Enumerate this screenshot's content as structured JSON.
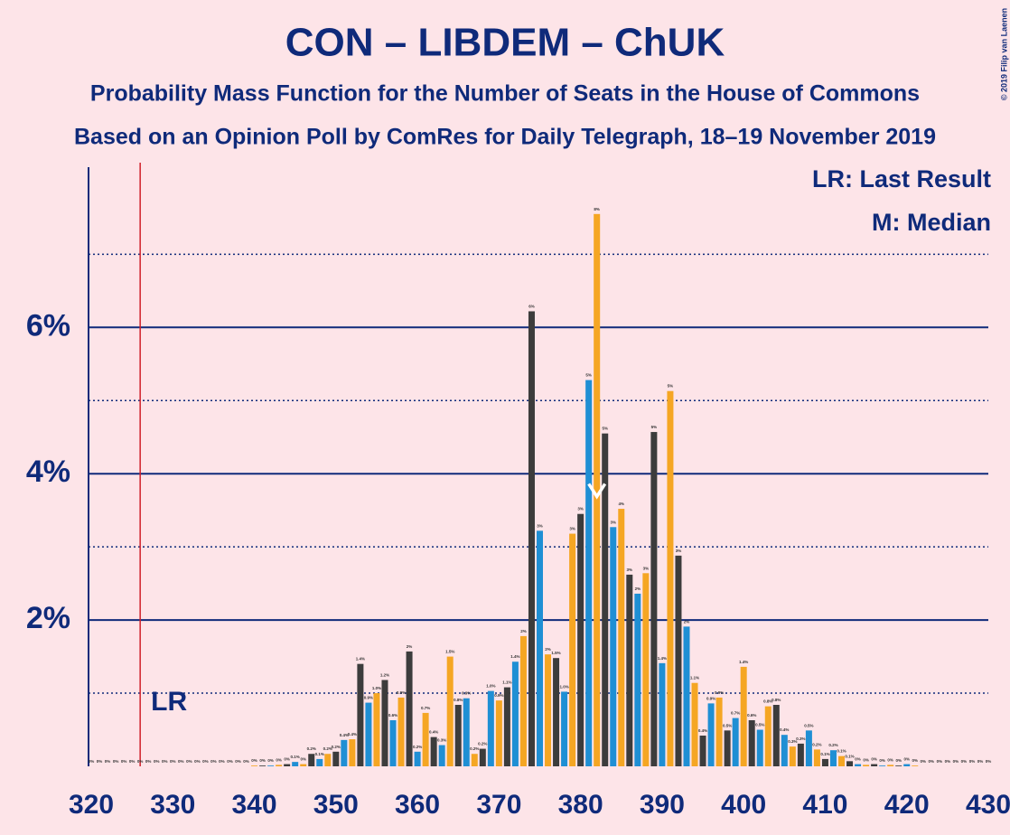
{
  "chart_data": {
    "type": "bar",
    "title": "CON – LIBDEM – ChUK",
    "subtitle": "Probability Mass Function for the Number of Seats in the House of Commons",
    "subtitle2": "Based on an Opinion Poll by ComRes for Daily Telegraph, 18–19 November 2019",
    "legend_lr": "LR: Last Result",
    "legend_median": "M: Median",
    "last_result": 326,
    "last_result_label": "LR",
    "median": 382,
    "copyright": "© 2019 Filip van Laenen",
    "colors": [
      "#3c3c3c",
      "#1f8fd4",
      "#f5a623"
    ],
    "x": [
      320,
      321,
      322,
      323,
      324,
      325,
      326,
      327,
      328,
      329,
      330,
      331,
      332,
      333,
      334,
      335,
      336,
      337,
      338,
      339,
      340,
      341,
      342,
      343,
      344,
      345,
      346,
      347,
      348,
      349,
      350,
      351,
      352,
      353,
      354,
      355,
      356,
      357,
      358,
      359,
      360,
      361,
      362,
      363,
      364,
      365,
      366,
      367,
      368,
      369,
      370,
      371,
      372,
      373,
      374,
      375,
      376,
      377,
      378,
      379,
      380,
      381,
      382,
      383,
      384,
      385,
      386,
      387,
      388,
      389,
      390,
      391,
      392,
      393,
      394,
      395,
      396,
      397,
      398,
      399,
      400,
      401,
      402,
      403,
      404,
      405,
      406,
      407,
      408,
      409,
      410,
      411,
      412,
      413,
      414,
      415,
      416,
      417,
      418,
      419,
      420,
      421,
      422,
      423,
      424,
      425,
      426,
      427,
      428,
      429,
      430
    ],
    "values": [
      0,
      0,
      0,
      0,
      0,
      0,
      0,
      0,
      0,
      0,
      0,
      0,
      0,
      0,
      0,
      0,
      0,
      0,
      0,
      0,
      0.01,
      0.01,
      0.01,
      0.02,
      0.03,
      0.06,
      0.03,
      0.17,
      0.1,
      0.17,
      0.2,
      0.36,
      0.37,
      1.4,
      0.87,
      1.0,
      1.18,
      0.63,
      0.94,
      1.57,
      0.2,
      0.73,
      0.4,
      0.29,
      1.5,
      0.84,
      0.93,
      0.17,
      0.24,
      1.03,
      0.9,
      1.08,
      1.43,
      1.78,
      6.22,
      3.22,
      1.53,
      1.48,
      1.02,
      3.18,
      3.45,
      5.28,
      7.55,
      4.55,
      3.27,
      3.52,
      2.62,
      2.36,
      2.64,
      4.57,
      1.41,
      5.13,
      2.88,
      1.91,
      1.14,
      0.42,
      0.86,
      0.94,
      0.49,
      0.66,
      1.36,
      0.63,
      0.5,
      0.82,
      0.84,
      0.43,
      0.27,
      0.31,
      0.49,
      0.23,
      0.1,
      0.22,
      0.14,
      0.07,
      0.03,
      0.02,
      0.03,
      0.01,
      0.02,
      0.01,
      0.03,
      0.01,
      0,
      0,
      0,
      0,
      0,
      0,
      0,
      0,
      0
    ],
    "value_labels": [
      "0%",
      "0%",
      "0%",
      "0%",
      "0%",
      "0%",
      "0%",
      "0%",
      "0%",
      "0%",
      "0%",
      "0%",
      "0%",
      "0%",
      "0%",
      "0%",
      "0%",
      "0%",
      "0%",
      "0%",
      "0%",
      "0%",
      "0%",
      "0%",
      "0%",
      "0.1%",
      "0%",
      "0.2%",
      "0.1%",
      "0.2%",
      "0.2%",
      "0.4%",
      "0.4%",
      "1.4%",
      "0.9%",
      "1.0%",
      "1.2%",
      "0.6%",
      "0.9%",
      "2%",
      "0.2%",
      "0.7%",
      "0.4%",
      "0.3%",
      "1.5%",
      "0.8%",
      "0.9%",
      "0.2%",
      "0.2%",
      "1.0%",
      "0.9%",
      "1.1%",
      "1.4%",
      "2%",
      "6%",
      "3%",
      "2%",
      "1.5%",
      "1.0%",
      "3%",
      "3%",
      "5%",
      "8%",
      "5%",
      "3%",
      "4%",
      "3%",
      "2%",
      "3%",
      "5%",
      "1.4%",
      "5%",
      "3%",
      "2%",
      "1.1%",
      "0.4%",
      "0.9%",
      "0.9%",
      "0.5%",
      "0.7%",
      "1.4%",
      "0.6%",
      "0.5%",
      "0.8%",
      "0.8%",
      "0.4%",
      "0.3%",
      "0.3%",
      "0.5%",
      "0.2%",
      "0.1%",
      "0.2%",
      "0.1%",
      "0.1%",
      "0%",
      "0%",
      "0%",
      "0%",
      "0%",
      "0%",
      "0%",
      "0%",
      "0%",
      "0%",
      "0%",
      "0%",
      "0%",
      "0%",
      "0%",
      "0%",
      "0%"
    ],
    "xlim": [
      320,
      430
    ],
    "xticks": [
      320,
      330,
      340,
      350,
      360,
      370,
      380,
      390,
      400,
      410,
      420,
      430
    ],
    "ylim": [
      0,
      8.19
    ],
    "yticks": [
      {
        "value": 2,
        "label": "2%"
      },
      {
        "value": 4,
        "label": "4%"
      },
      {
        "value": 6,
        "label": "6%"
      }
    ],
    "yminor": [
      1,
      3,
      5,
      7
    ],
    "grid": true
  }
}
